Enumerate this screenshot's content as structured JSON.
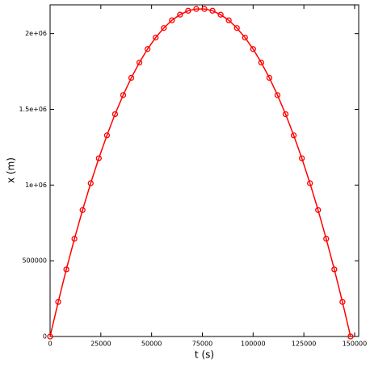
{
  "chart_data": {
    "type": "line",
    "xlabel": "t (s)",
    "ylabel": "x (m)",
    "x": [
      0,
      4000,
      8000,
      12000,
      16000,
      20000,
      24000,
      28000,
      32000,
      36000,
      40000,
      44000,
      48000,
      52000,
      56000,
      60000,
      64000,
      68000,
      72000,
      76000,
      80000,
      84000,
      88000,
      92000,
      96000,
      100000,
      104000,
      108000,
      112000,
      116000,
      120000,
      124000,
      128000,
      132000,
      136000,
      140000,
      144000,
      148000
    ],
    "series": [
      {
        "color": "#ff0000",
        "values": [
          0,
          228000,
          443000,
          645000,
          835000,
          1012000,
          1177000,
          1328000,
          1468000,
          1594000,
          1708000,
          1809000,
          1898000,
          1974000,
          2037000,
          2088000,
          2125000,
          2151000,
          2163000,
          2163000,
          2151000,
          2125000,
          2088000,
          2037000,
          1974000,
          1898000,
          1809000,
          1708000,
          1594000,
          1468000,
          1328000,
          1177000,
          1012000,
          835000,
          645000,
          443000,
          228000,
          0
        ]
      }
    ],
    "xlim": [
      0,
      152000
    ],
    "xticks": [
      0,
      25000,
      50000,
      75000,
      100000,
      125000,
      150000
    ],
    "ylim": [
      0,
      2190000
    ],
    "yticks": [
      0,
      500000,
      {
        "value": 1000000,
        "label": "1e+06"
      },
      {
        "value": 1500000,
        "label": "1.5e+06"
      },
      {
        "value": 2000000,
        "label": "2e+06"
      }
    ]
  }
}
